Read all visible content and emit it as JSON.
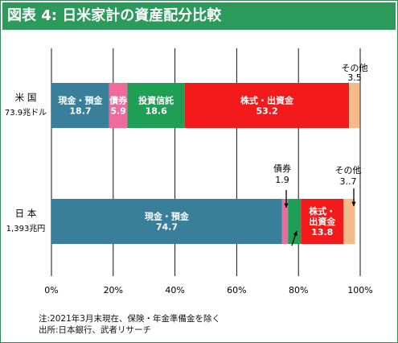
{
  "title": "図表 4: 日米家計の資産配分比較",
  "chart_data": {
    "type": "bar",
    "orientation": "horizontal-stacked-100",
    "categories": [
      {
        "name": "米 国",
        "sub": "73.9兆ドル"
      },
      {
        "name": "日 本",
        "sub": "1,393兆円"
      }
    ],
    "series": [
      {
        "name": "現金・預金",
        "color": "#3a7f9a",
        "values": [
          18.7,
          74.7
        ]
      },
      {
        "name": "債券",
        "color": "#f06a9e",
        "values": [
          5.9,
          1.9
        ]
      },
      {
        "name": "投資信託",
        "color": "#1f9f55",
        "values": [
          18.6,
          4.2
        ]
      },
      {
        "name": "株式・出資金",
        "color": "#f21a1a",
        "values": [
          53.2,
          13.8
        ]
      },
      {
        "name": "その他",
        "color": "#f5b98a",
        "values": [
          3.5,
          3.7
        ]
      }
    ],
    "segment_labels": [
      [
        "現金・預金\n18.7",
        "債券\n5.9",
        "投資信託\n18.6",
        "株式・出資金\n53.2",
        ""
      ],
      [
        "現金・預金\n74.7",
        "",
        "",
        "株式・\n出資金\n13.8",
        ""
      ]
    ],
    "callouts": [
      {
        "bar": 0,
        "text": "その他\n3.5"
      },
      {
        "bar": 1,
        "text": "債券\n1.9"
      },
      {
        "bar": 1,
        "text": "その他\n3..7"
      }
    ],
    "xticks": [
      "0%",
      "20%",
      "40%",
      "60%",
      "80%",
      "100%"
    ],
    "xlim": [
      0,
      100
    ],
    "grid": true
  },
  "notes": [
    "注:2021年3月末現在、保険・年金準備金を除く",
    "出所:日本銀行、武者リサーチ"
  ]
}
